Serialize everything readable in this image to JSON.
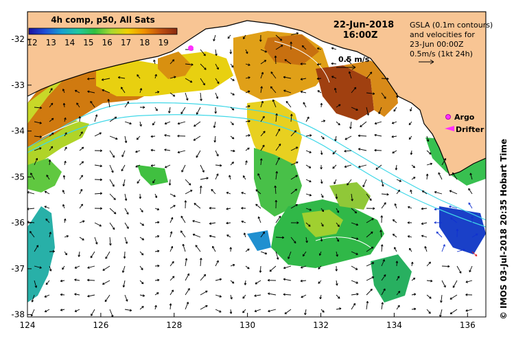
{
  "title": "4h comp, p50, All Sats",
  "date": "22-Jun-2018",
  "time": "16:00Z",
  "gsla_note": [
    "GSLA (0.1m contours)",
    "and velocities for",
    "23-Jun 00:00Z",
    "0.5m/s (1kt 24h)"
  ],
  "velocity_scale_label": "0.5 m/s",
  "legend": {
    "argo": "Argo",
    "drifter": "Drifter"
  },
  "credit": "© IMOS 03-Jul-2018 20:35 Hobart Time",
  "colorbar": {
    "ticks": [
      "12",
      "13",
      "14",
      "15",
      "16",
      "17",
      "18",
      "19"
    ],
    "colors": [
      "#1a10a0",
      "#1f4fd8",
      "#18a0d0",
      "#20c8a0",
      "#30c040",
      "#a8d830",
      "#f0d000",
      "#f09000",
      "#c05010",
      "#8a2a10"
    ]
  },
  "axes": {
    "x_ticks": [
      "124",
      "126",
      "128",
      "130",
      "132",
      "134",
      "136"
    ],
    "y_ticks": [
      "-32",
      "-33",
      "-34",
      "-35",
      "-36",
      "-37",
      "-38"
    ],
    "lon_range": [
      124,
      136.5
    ],
    "lat_range": [
      -31.4,
      -38.05
    ]
  }
}
